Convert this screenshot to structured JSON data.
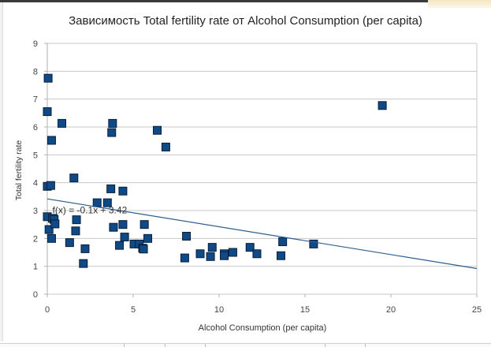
{
  "chart_data": {
    "type": "scatter",
    "title": "Зависимость Total fertility rate от Alcohol Consumption (per capita)",
    "xlabel": "Alcohol Consumption (per capita)",
    "ylabel": "Total fertility rate",
    "xlim": [
      0,
      25
    ],
    "ylim": [
      0,
      9
    ],
    "xticks": [
      "0",
      "5",
      "10",
      "15",
      "20",
      "25"
    ],
    "yticks": [
      "0",
      "1",
      "2",
      "3",
      "4",
      "5",
      "6",
      "7",
      "8",
      "9"
    ],
    "grid": "horizontal",
    "legend": "none",
    "marker": "square",
    "marker_color": "#0f4a86",
    "marker_edge": "#0a1f3a",
    "trendline": {
      "label": "f(x) = -0.1x + 3.42",
      "slope": -0.1,
      "intercept": 3.42,
      "color": "#2f5e8e"
    },
    "series": [
      {
        "name": "Total fertility rate",
        "points": [
          [
            0.05,
            7.75
          ],
          [
            0.0,
            6.55
          ],
          [
            0.85,
            6.13
          ],
          [
            0.25,
            5.52
          ],
          [
            0.0,
            3.87
          ],
          [
            0.2,
            3.9
          ],
          [
            1.55,
            4.17
          ],
          [
            0.0,
            2.78
          ],
          [
            0.1,
            2.32
          ],
          [
            0.3,
            2.72
          ],
          [
            0.4,
            2.68
          ],
          [
            0.45,
            2.52
          ],
          [
            0.25,
            2.0
          ],
          [
            1.7,
            2.67
          ],
          [
            1.65,
            2.27
          ],
          [
            1.3,
            1.85
          ],
          [
            2.2,
            1.63
          ],
          [
            2.1,
            1.1
          ],
          [
            2.9,
            3.28
          ],
          [
            3.5,
            3.28
          ],
          [
            3.7,
            3.78
          ],
          [
            4.4,
            3.7
          ],
          [
            3.8,
            6.13
          ],
          [
            3.75,
            5.8
          ],
          [
            6.4,
            5.88
          ],
          [
            6.9,
            5.28
          ],
          [
            3.85,
            2.4
          ],
          [
            4.4,
            2.5
          ],
          [
            4.5,
            2.05
          ],
          [
            4.2,
            1.75
          ],
          [
            5.05,
            1.8
          ],
          [
            5.35,
            1.8
          ],
          [
            5.55,
            1.65
          ],
          [
            5.6,
            1.62
          ],
          [
            5.65,
            2.5
          ],
          [
            5.85,
            2.0
          ],
          [
            8.1,
            2.08
          ],
          [
            8.0,
            1.3
          ],
          [
            8.9,
            1.45
          ],
          [
            9.5,
            1.35
          ],
          [
            9.6,
            1.68
          ],
          [
            10.3,
            1.45
          ],
          [
            10.3,
            1.38
          ],
          [
            10.8,
            1.5
          ],
          [
            11.8,
            1.68
          ],
          [
            12.2,
            1.45
          ],
          [
            13.6,
            1.38
          ],
          [
            13.7,
            1.88
          ],
          [
            15.5,
            1.8
          ],
          [
            19.5,
            6.77
          ]
        ]
      }
    ]
  },
  "window": {
    "chrome_color": "#3a3a3a"
  }
}
